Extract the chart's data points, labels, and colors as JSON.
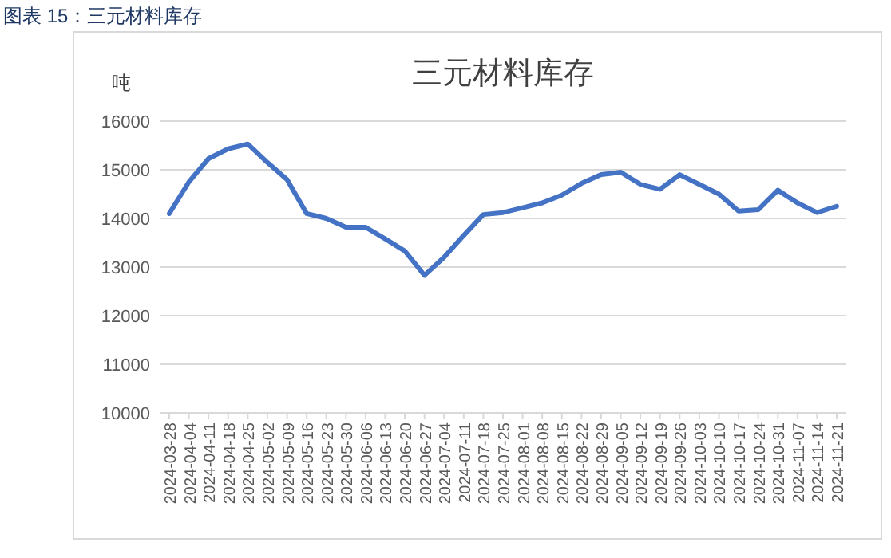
{
  "chart_data": {
    "type": "line",
    "title": "三元材料库存",
    "ylabel": "吨",
    "annotations": [
      "图表 15：三元材料库存"
    ],
    "categories": [
      "2024-03-28",
      "2024-04-04",
      "2024-04-11",
      "2024-04-18",
      "2024-04-25",
      "2024-05-02",
      "2024-05-09",
      "2024-05-16",
      "2024-05-23",
      "2024-05-30",
      "2024-06-06",
      "2024-06-13",
      "2024-06-20",
      "2024-06-27",
      "2024-07-04",
      "2024-07-11",
      "2024-07-18",
      "2024-07-25",
      "2024-08-01",
      "2024-08-08",
      "2024-08-15",
      "2024-08-22",
      "2024-08-29",
      "2024-09-05",
      "2024-09-12",
      "2024-09-19",
      "2024-09-26",
      "2024-10-03",
      "2024-10-10",
      "2024-10-17",
      "2024-10-24",
      "2024-10-31",
      "2024-11-07",
      "2024-11-14",
      "2024-11-21"
    ],
    "series": [
      {
        "color": "#4472c4",
        "values": [
          14100,
          14750,
          15230,
          15430,
          15530,
          15150,
          14800,
          14100,
          14000,
          13820,
          13820,
          13580,
          13330,
          12830,
          13200,
          13650,
          14080,
          14120,
          14220,
          14320,
          14480,
          14720,
          14900,
          14950,
          14700,
          14600,
          14900,
          14700,
          14500,
          14150,
          14180,
          14580,
          14320,
          14120,
          14250
        ]
      }
    ],
    "ylim": [
      10000,
      16000
    ],
    "yticks": [
      10000,
      11000,
      12000,
      13000,
      14000,
      15000,
      16000
    ],
    "grid": "y",
    "marker": "none",
    "line_style": "solid"
  }
}
